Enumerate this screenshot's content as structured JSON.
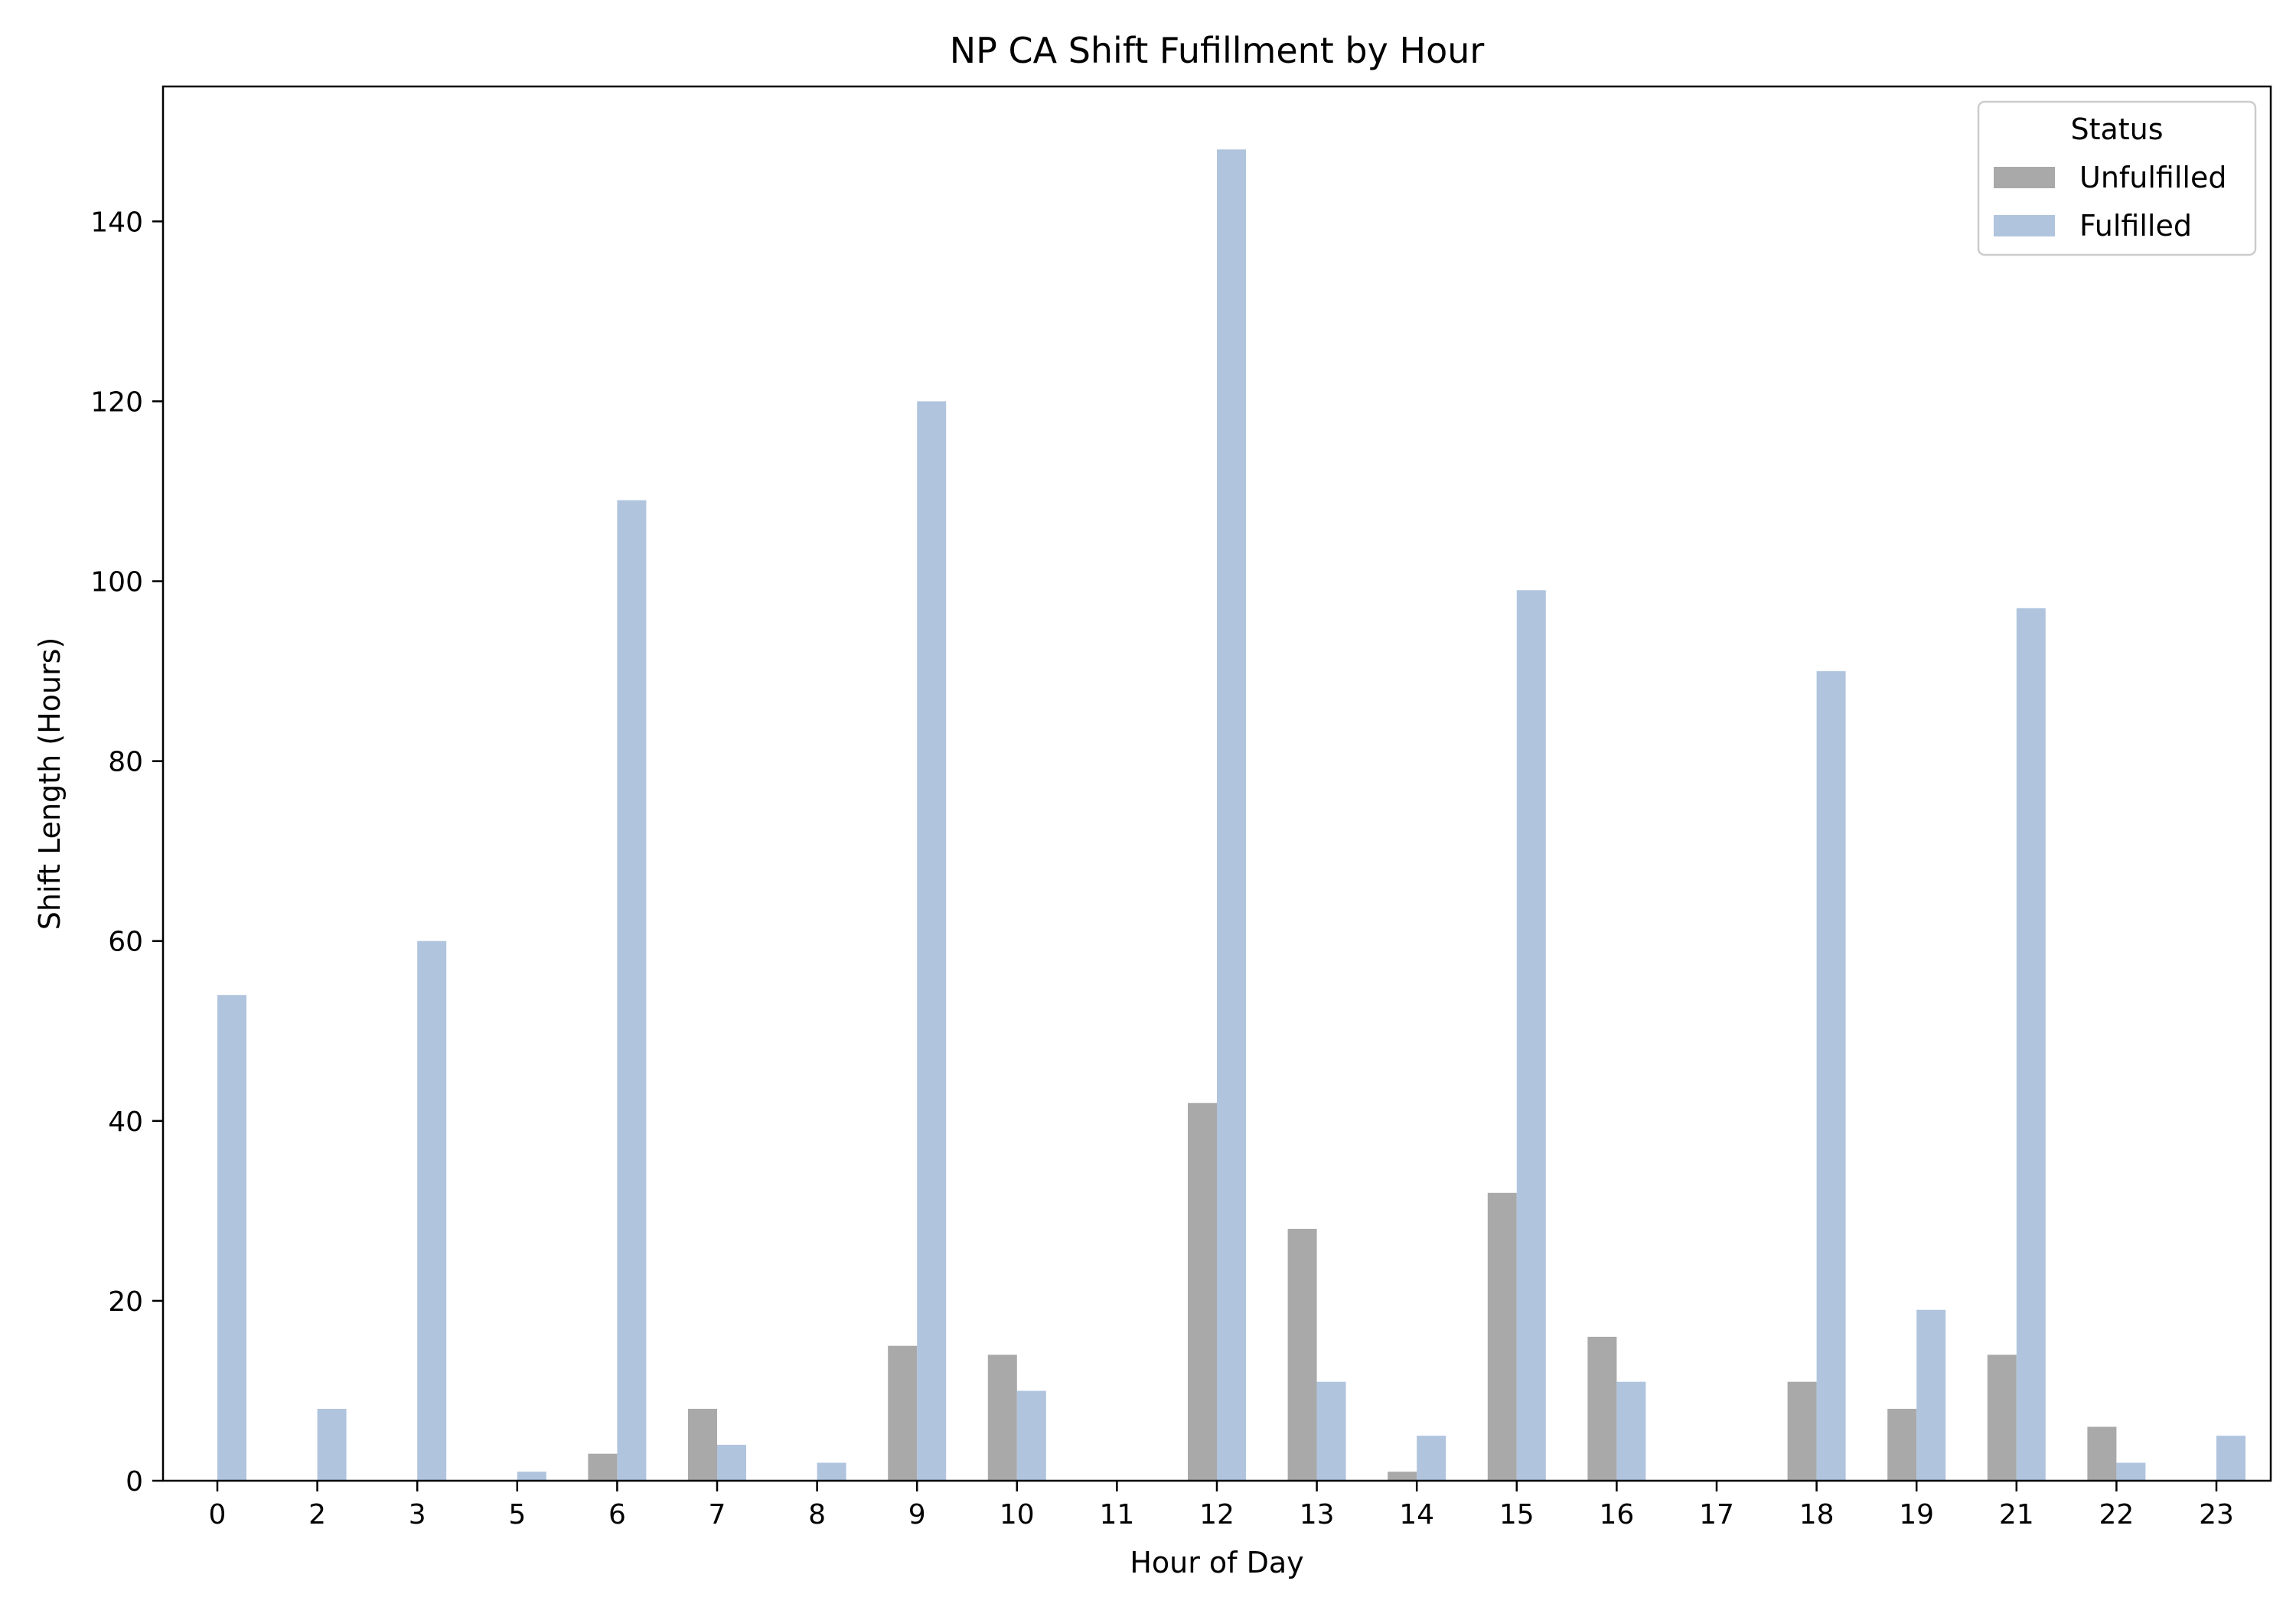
{
  "chart_data": {
    "type": "bar",
    "title": "NP CA Shift Fufillment by Hour",
    "xlabel": "Hour of Day",
    "ylabel": "Shift Length (Hours)",
    "categories": [
      "0",
      "2",
      "3",
      "5",
      "6",
      "7",
      "8",
      "9",
      "10",
      "11",
      "12",
      "13",
      "14",
      "15",
      "16",
      "17",
      "18",
      "19",
      "21",
      "22",
      "23"
    ],
    "ylim": [
      0,
      155
    ],
    "yticks": [
      0,
      20,
      40,
      60,
      80,
      100,
      120,
      140
    ],
    "grid": false,
    "legend": {
      "title": "Status",
      "placement": "top-right"
    },
    "series": [
      {
        "name": "Unfulfilled",
        "color": "#a9a9a9",
        "values": [
          0,
          0,
          0,
          0,
          3,
          8,
          0,
          15,
          14,
          0,
          42,
          28,
          1,
          32,
          16,
          0,
          11,
          8,
          14,
          6,
          0
        ]
      },
      {
        "name": "Fulfilled",
        "color": "#b0c4de",
        "values": [
          54,
          8,
          60,
          1,
          109,
          4,
          2,
          120,
          10,
          0,
          148,
          11,
          5,
          99,
          11,
          0,
          90,
          19,
          97,
          2,
          5
        ]
      }
    ]
  }
}
